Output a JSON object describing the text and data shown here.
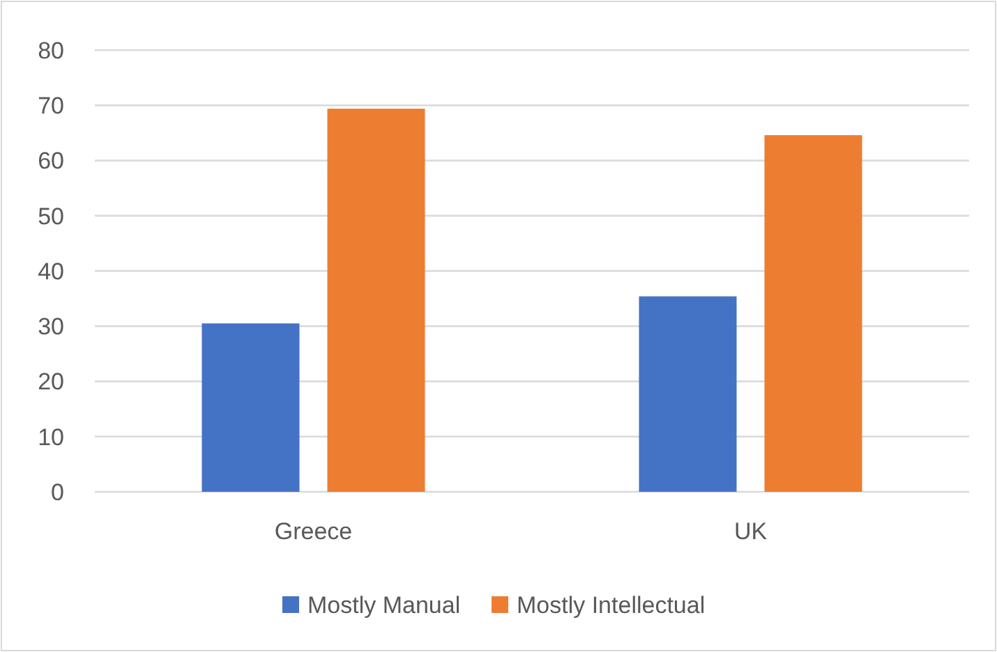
{
  "chart_data": {
    "type": "bar",
    "categories": [
      "Greece",
      "UK"
    ],
    "series": [
      {
        "name": "Mostly Manual",
        "color": "#4472c4",
        "values": [
          30.5,
          35.4
        ]
      },
      {
        "name": "Mostly Intellectual",
        "color": "#ed7d31",
        "values": [
          69.4,
          64.6
        ]
      }
    ],
    "ylim": [
      0,
      80
    ],
    "yticks": [
      0,
      10,
      20,
      30,
      40,
      50,
      60,
      70,
      80
    ],
    "grid": "y",
    "legend": "bottom"
  }
}
